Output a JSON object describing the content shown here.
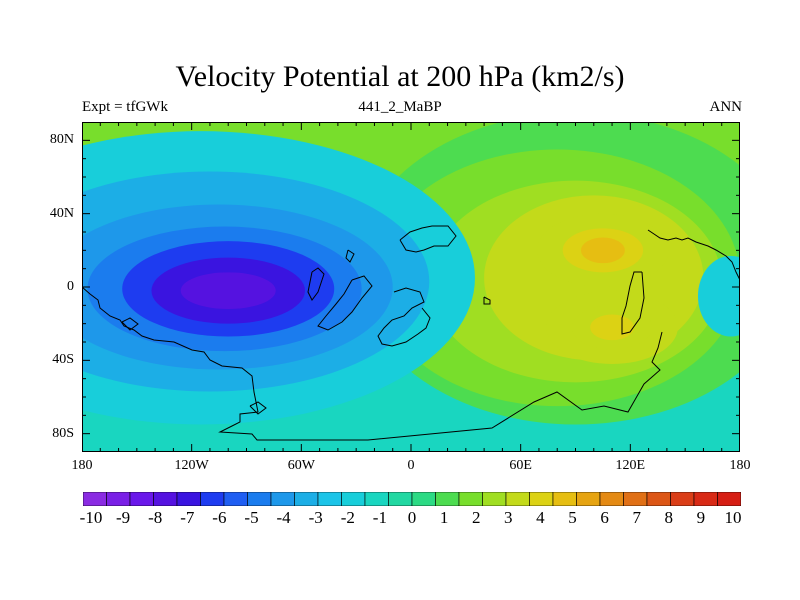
{
  "chart_data": {
    "type": "heatmap",
    "title": "Velocity Potential at 200 hPa (km2/s)",
    "subtitle_left": "Expt = tfGWk",
    "subtitle_center": "441_2_MaBP",
    "subtitle_right": "ANN",
    "xlabel": "",
    "ylabel": "",
    "x_range": [
      -180,
      180
    ],
    "y_range": [
      -90,
      90
    ],
    "x_ticks": [
      {
        "value": -180,
        "label": "180"
      },
      {
        "value": -120,
        "label": "120W"
      },
      {
        "value": -60,
        "label": "60W"
      },
      {
        "value": 0,
        "label": "0"
      },
      {
        "value": 60,
        "label": "60E"
      },
      {
        "value": 120,
        "label": "120E"
      },
      {
        "value": 180,
        "label": "180"
      }
    ],
    "y_ticks": [
      {
        "value": 80,
        "label": "80N"
      },
      {
        "value": 40,
        "label": "40N"
      },
      {
        "value": 0,
        "label": "0"
      },
      {
        "value": -40,
        "label": "40S"
      },
      {
        "value": -80,
        "label": "80S"
      }
    ],
    "colorbar": {
      "levels": [
        -10,
        -9,
        -8,
        -7,
        -6,
        -5,
        -4,
        -3,
        -2,
        -1,
        0,
        1,
        2,
        3,
        4,
        5,
        6,
        7,
        8,
        9,
        10
      ],
      "labels": [
        "-10",
        "-9",
        "-8",
        "-7",
        "-6",
        "-5",
        "-4",
        "-3",
        "-2",
        "-1",
        "0",
        "1",
        "2",
        "3",
        "4",
        "5",
        "6",
        "7",
        "8",
        "9",
        "10"
      ],
      "colors": [
        "#8A2BE2",
        "#7A20E6",
        "#6A18EA",
        "#5512E0",
        "#3A14E0",
        "#1E3CF0",
        "#1F5EF2",
        "#1B7CEE",
        "#1E98EA",
        "#1CAEE6",
        "#1CC4E8",
        "#18CEDA",
        "#19D6C0",
        "#22D8A2",
        "#2CDA84",
        "#4DDC50",
        "#78DE2C",
        "#A0DE22",
        "#C3DA1A",
        "#DCD214",
        "#E6BE12",
        "#E6A412",
        "#E48A14",
        "#E07016",
        "#DC5616",
        "#DA3E18",
        "#D82A16",
        "#D61E14"
      ]
    },
    "field_features": [
      {
        "type": "low",
        "lon": -100,
        "lat": -2,
        "value": -7.4
      },
      {
        "type": "high",
        "lon": 105,
        "lat": 20,
        "value": 4.3
      },
      {
        "type": "high",
        "lon": 110,
        "lat": -22,
        "value": 3.8
      },
      {
        "type": "background",
        "value": -1.0
      }
    ]
  }
}
